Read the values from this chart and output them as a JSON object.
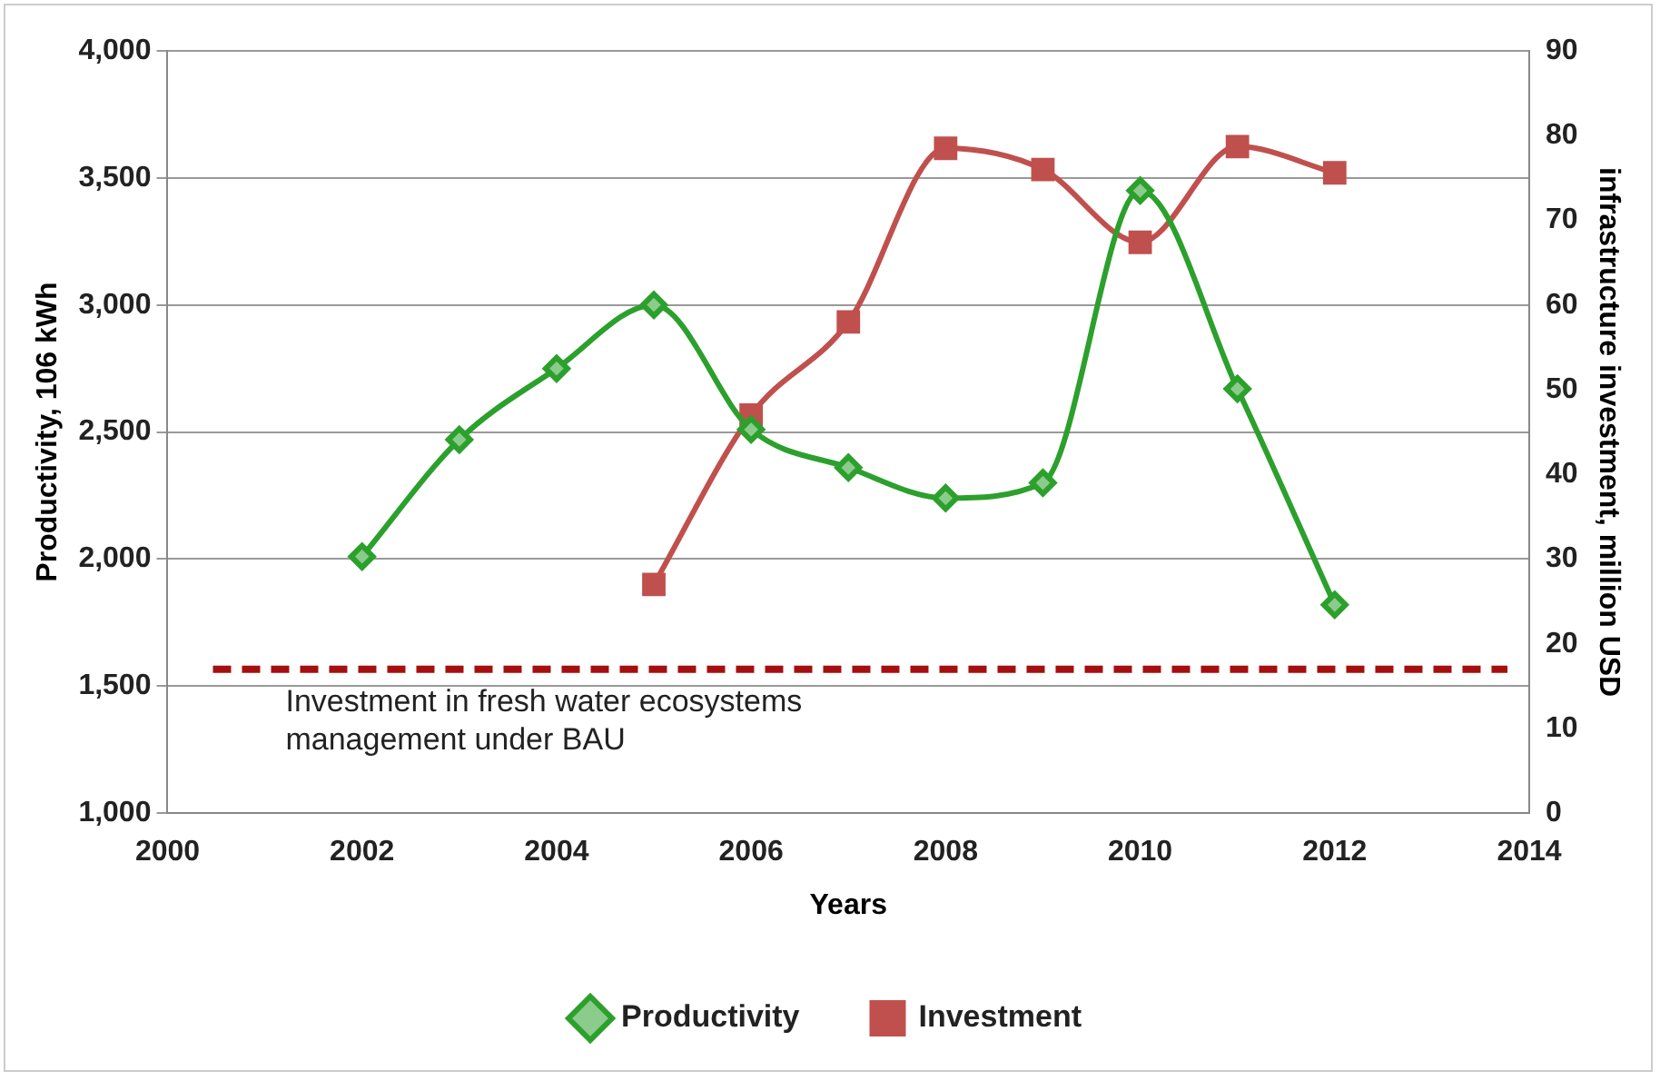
{
  "chart_data": {
    "type": "line",
    "xlabel": "Years",
    "ylabel": "Productivity, 106 kWh",
    "y2label": "infrastructure investment, million USD",
    "x": [
      2002,
      2003,
      2004,
      2005,
      2006,
      2007,
      2008,
      2009,
      2010,
      2011,
      2012
    ],
    "series": [
      {
        "name": "Productivity",
        "color": "#2ca02c",
        "marker": "diamond",
        "values": [
          2010,
          2470,
          2750,
          3000,
          2510,
          2360,
          2240,
          2300,
          3450,
          2670,
          1820
        ]
      },
      {
        "name": "Investment",
        "color": "#c0504d",
        "marker": "square",
        "axis": "y2",
        "values": [
          null,
          null,
          null,
          27,
          47,
          58,
          78.5,
          76,
          67.4,
          78.7,
          75.6
        ]
      }
    ],
    "xlim": [
      2000,
      2014
    ],
    "xticks": [
      2000,
      2002,
      2004,
      2006,
      2008,
      2010,
      2012,
      2014
    ],
    "ylim": [
      1000,
      4000
    ],
    "yticks": [
      {
        "value": 1000,
        "label": "1,000"
      },
      {
        "value": 1500,
        "label": "1,500"
      },
      {
        "value": 2000,
        "label": "2,000"
      },
      {
        "value": 2500,
        "label": "2,500"
      },
      {
        "value": 3000,
        "label": "3,000"
      },
      {
        "value": 3500,
        "label": "3,500"
      },
      {
        "value": 4000,
        "label": "4,000"
      }
    ],
    "y2lim": [
      0,
      90
    ],
    "y2ticks": [
      0,
      10,
      20,
      30,
      40,
      50,
      60,
      70,
      80,
      90
    ],
    "ref_lines": [
      {
        "axis": "y2",
        "value": 17,
        "label": "Investment in fresh water ecosystems management under BAU",
        "color": "#a50f0f",
        "line_style": "dashed"
      }
    ],
    "grid": "y",
    "legend": "bottom"
  }
}
